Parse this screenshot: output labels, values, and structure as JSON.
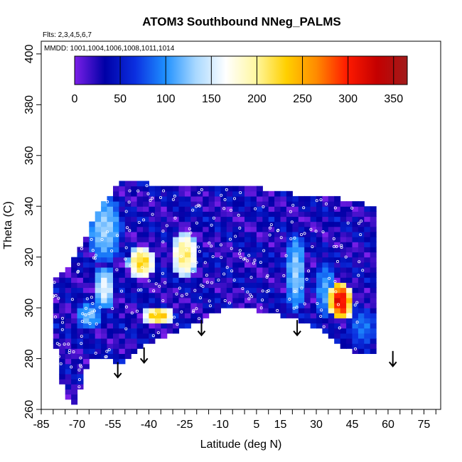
{
  "chart_data": {
    "type": "heatmap",
    "title": "ATOM3 Southbound NNeg_PALMS",
    "annotation_flights": "Flts: 2,3,4,5,6,7",
    "annotation_dates": "MMDD: 1001,1004,1006,1008,1011,1014",
    "xlabel": "Latitude (deg N)",
    "ylabel": "Theta (C)",
    "xlim": [
      -85,
      82
    ],
    "ylim": [
      260,
      405
    ],
    "x_tick_labels": [
      "-85",
      "-70",
      "-55",
      "-40",
      "-25",
      "-10",
      "5",
      "15",
      "30",
      "45",
      "60",
      "75"
    ],
    "y_tick_labels": [
      "260",
      "280",
      "300",
      "320",
      "340",
      "360",
      "380",
      "400"
    ],
    "colorbar": {
      "range": [
        0,
        365
      ],
      "tick_labels": [
        "0",
        "50",
        "100",
        "150",
        "200",
        "250",
        "300",
        "350"
      ],
      "colors": [
        "#7b1fe8",
        "#0000a6",
        "#0b2fe0",
        "#1e90ff",
        "#a8d8ff",
        "#ffffff",
        "#fff7a0",
        "#ffd000",
        "#ff8a00",
        "#ff1a00",
        "#c40000",
        "#a11b1b"
      ]
    },
    "data_domain": {
      "lat_range": [
        -80,
        70
      ],
      "lower_boundary": [
        [
          -80,
          300
        ],
        [
          -78,
          275
        ],
        [
          -75,
          267
        ],
        [
          -72,
          262
        ],
        [
          -68,
          270
        ],
        [
          -65,
          282
        ],
        [
          -60,
          281
        ],
        [
          -55,
          280
        ],
        [
          -50,
          279
        ],
        [
          -45,
          283
        ],
        [
          -40,
          287
        ],
        [
          -35,
          289
        ],
        [
          -30,
          291
        ],
        [
          -25,
          293
        ],
        [
          -20,
          295
        ],
        [
          -15,
          298
        ],
        [
          -10,
          300
        ],
        [
          -5,
          301
        ],
        [
          0,
          301
        ],
        [
          5,
          300
        ],
        [
          10,
          299
        ],
        [
          15,
          298
        ],
        [
          20,
          297
        ],
        [
          25,
          295
        ],
        [
          30,
          293
        ],
        [
          35,
          290
        ],
        [
          40,
          286
        ],
        [
          45,
          284
        ],
        [
          50,
          283
        ],
        [
          55,
          283
        ]
      ],
      "upper_boundary": [
        [
          -80,
          310
        ],
        [
          -75,
          314
        ],
        [
          -70,
          320
        ],
        [
          -65,
          330
        ],
        [
          -60,
          340
        ],
        [
          -55,
          345
        ],
        [
          -50,
          350
        ],
        [
          -45,
          349
        ],
        [
          -40,
          348
        ],
        [
          -30,
          347
        ],
        [
          -20,
          347
        ],
        [
          -10,
          347
        ],
        [
          0,
          347
        ],
        [
          5,
          347
        ],
        [
          10,
          345
        ],
        [
          20,
          344
        ],
        [
          30,
          343
        ],
        [
          40,
          342
        ],
        [
          50,
          340
        ],
        [
          55,
          339
        ]
      ],
      "background_value": 30,
      "features": [
        {
          "lat": [
            -65,
            -52
          ],
          "theta": [
            318,
            345
          ],
          "value": 130
        },
        {
          "lat": [
            -48,
            -38
          ],
          "theta": [
            312,
            324
          ],
          "value": 230
        },
        {
          "lat": [
            -42,
            -30
          ],
          "theta": [
            294,
            300
          ],
          "value": 240
        },
        {
          "lat": [
            -30,
            -20
          ],
          "theta": [
            312,
            330
          ],
          "value": 210
        },
        {
          "lat": [
            -62,
            -55
          ],
          "theta": [
            300,
            316
          ],
          "value": 160
        },
        {
          "lat": [
            -70,
            -60
          ],
          "theta": [
            292,
            302
          ],
          "value": 120
        },
        {
          "lat": [
            18,
            25
          ],
          "theta": [
            298,
            330
          ],
          "value": 130
        },
        {
          "lat": [
            30,
            38
          ],
          "theta": [
            296,
            318
          ],
          "value": 110
        },
        {
          "lat": [
            36,
            44
          ],
          "theta": [
            296,
            310
          ],
          "value": 320
        },
        {
          "lat": [
            38,
            44
          ],
          "theta": [
            296,
            304
          ],
          "value": 290
        },
        {
          "lat": [
            44,
            55
          ],
          "theta": [
            285,
            300
          ],
          "value": 90
        }
      ]
    },
    "arrows_lat": [
      -53,
      -42,
      -18,
      22,
      62
    ]
  }
}
